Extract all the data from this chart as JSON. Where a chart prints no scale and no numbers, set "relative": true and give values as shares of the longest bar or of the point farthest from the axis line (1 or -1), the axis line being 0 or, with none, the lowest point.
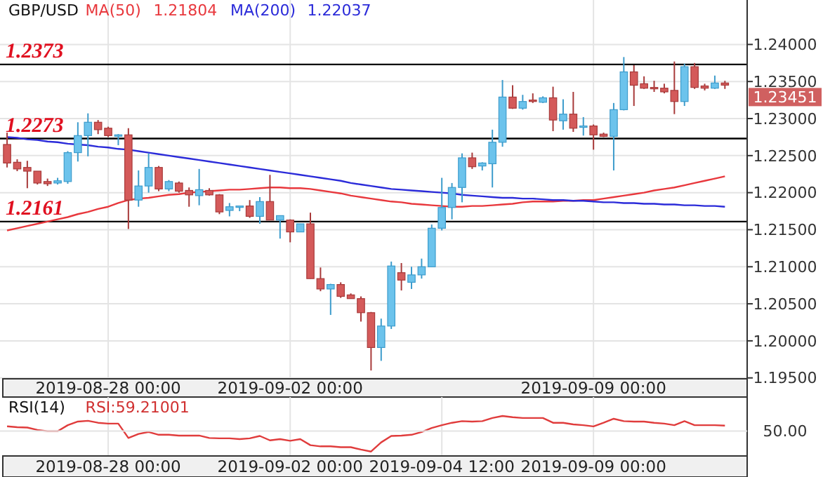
{
  "chart_data": [
    {
      "type": "candlestick",
      "title": "GBP/USD",
      "legend": "top",
      "grid": true,
      "categories": [
        null,
        null,
        null,
        null,
        null,
        null,
        null,
        null,
        null,
        null,
        "2019-08-28 00:00",
        null,
        null,
        null,
        null,
        null,
        null,
        null,
        null,
        null,
        null,
        null,
        null,
        null,
        null,
        null,
        null,
        null,
        "2019-09-02 00:00",
        null,
        null,
        null,
        null,
        null,
        null,
        null,
        null,
        null,
        null,
        null,
        null,
        null,
        null,
        null,
        null,
        null,
        null,
        null,
        null,
        null,
        null,
        null,
        null,
        null,
        null,
        null,
        null,
        null,
        "2019-09-09 00:00",
        null,
        null,
        null,
        null,
        null,
        null,
        null,
        null,
        null,
        null,
        null,
        null,
        null
      ],
      "ylim": [
        1.1945,
        1.246
      ],
      "yticks": [
        {
          "value": 1.195,
          "label": "1.19500"
        },
        {
          "value": 1.2,
          "label": "1.20000"
        },
        {
          "value": 1.205,
          "label": "1.20500"
        },
        {
          "value": 1.21,
          "label": "1.21000"
        },
        {
          "value": 1.215,
          "label": "1.21500"
        },
        {
          "value": 1.22,
          "label": "1.22000"
        },
        {
          "value": 1.225,
          "label": "1.22500"
        },
        {
          "value": 1.23,
          "label": "1.23000"
        },
        {
          "value": 1.235,
          "label": "1.23500"
        },
        {
          "value": 1.24,
          "label": "1.24000"
        }
      ],
      "ohlc": [
        [
          1.2265,
          1.2281,
          1.2234,
          1.224
        ],
        [
          1.2241,
          1.2245,
          1.2229,
          1.2232
        ],
        [
          1.2234,
          1.2243,
          1.2206,
          1.2229
        ],
        [
          1.2229,
          1.2229,
          1.2211,
          1.2213
        ],
        [
          1.2215,
          1.2219,
          1.2209,
          1.2212
        ],
        [
          1.2213,
          1.222,
          1.2211,
          1.2216
        ],
        [
          1.2215,
          1.2256,
          1.2212,
          1.2254
        ],
        [
          1.2254,
          1.2295,
          1.2242,
          1.2277
        ],
        [
          1.2277,
          1.2307,
          1.2249,
          1.2295
        ],
        [
          1.2295,
          1.2298,
          1.2279,
          1.2285
        ],
        [
          1.2287,
          1.2289,
          1.2275,
          1.2277
        ],
        [
          1.2277,
          1.2279,
          1.2264,
          1.2278
        ],
        [
          1.2278,
          1.2287,
          1.2151,
          1.219
        ],
        [
          1.219,
          1.223,
          1.2181,
          1.2209
        ],
        [
          1.2209,
          1.2253,
          1.22,
          1.2234
        ],
        [
          1.2234,
          1.2236,
          1.2202,
          1.2205
        ],
        [
          1.2205,
          1.2217,
          1.2202,
          1.2215
        ],
        [
          1.2213,
          1.2215,
          1.22,
          1.2202
        ],
        [
          1.2203,
          1.2207,
          1.2181,
          1.2197
        ],
        [
          1.2196,
          1.2232,
          1.2183,
          1.2204
        ],
        [
          1.2203,
          1.2206,
          1.2196,
          1.2197
        ],
        [
          1.2197,
          1.2198,
          1.2171,
          1.2174
        ],
        [
          1.2176,
          1.2186,
          1.2168,
          1.2181
        ],
        [
          1.2181,
          1.2182,
          1.2175,
          1.2182
        ],
        [
          1.2182,
          1.219,
          1.2166,
          1.2168
        ],
        [
          1.2168,
          1.2194,
          1.2158,
          1.2188
        ],
        [
          1.2188,
          1.2224,
          1.2163,
          1.2163
        ],
        [
          1.2163,
          1.2169,
          1.2138,
          1.2169
        ],
        [
          1.2163,
          1.2164,
          1.2133,
          1.2147
        ],
        [
          1.2147,
          1.2158,
          1.2147,
          1.2158
        ],
        [
          1.2158,
          1.2173,
          1.2084,
          1.2084
        ],
        [
          1.2084,
          1.2099,
          1.2067,
          1.207
        ],
        [
          1.207,
          1.2077,
          1.2035,
          1.2076
        ],
        [
          1.2076,
          1.2079,
          1.2058,
          1.206
        ],
        [
          1.2062,
          1.2064,
          1.2057,
          1.2057
        ],
        [
          1.2057,
          1.206,
          1.2026,
          1.2038
        ],
        [
          1.2038,
          1.2039,
          1.196,
          1.1991
        ],
        [
          1.1991,
          1.203,
          1.1973,
          1.202
        ],
        [
          1.202,
          1.2107,
          1.2016,
          1.2101
        ],
        [
          1.2092,
          1.2105,
          1.2068,
          1.2082
        ],
        [
          1.2079,
          1.21,
          1.207,
          1.2089
        ],
        [
          1.2089,
          1.2111,
          1.2084,
          1.21
        ],
        [
          1.21,
          1.2157,
          1.21,
          1.2152
        ],
        [
          1.2152,
          1.222,
          1.2149,
          1.218
        ],
        [
          1.218,
          1.2213,
          1.2164,
          1.2207
        ],
        [
          1.2207,
          1.2253,
          1.2187,
          1.2247
        ],
        [
          1.2247,
          1.2254,
          1.2232,
          1.2235
        ],
        [
          1.2236,
          1.2241,
          1.223,
          1.224
        ],
        [
          1.2239,
          1.2285,
          1.2207,
          1.2268
        ],
        [
          1.2268,
          1.2352,
          1.2262,
          1.2329
        ],
        [
          1.2329,
          1.2345,
          1.2313,
          1.2314
        ],
        [
          1.2314,
          1.2332,
          1.2312,
          1.2323
        ],
        [
          1.2325,
          1.2334,
          1.2321,
          1.2323
        ],
        [
          1.2322,
          1.233,
          1.2321,
          1.2328
        ],
        [
          1.2328,
          1.2343,
          1.2283,
          1.2298
        ],
        [
          1.2297,
          1.2326,
          1.2285,
          1.2306
        ],
        [
          1.2306,
          1.2336,
          1.2282,
          1.2287
        ],
        [
          1.2289,
          1.2302,
          1.2277,
          1.229
        ],
        [
          1.229,
          1.2292,
          1.2258,
          1.2278
        ],
        [
          1.2279,
          1.2281,
          1.2275,
          1.2276
        ],
        [
          1.2276,
          1.2321,
          1.223,
          1.2312
        ],
        [
          1.2312,
          1.2383,
          1.2311,
          1.2363
        ],
        [
          1.2363,
          1.2372,
          1.2317,
          1.2345
        ],
        [
          1.2347,
          1.2357,
          1.234,
          1.2341
        ],
        [
          1.2342,
          1.2351,
          1.2336,
          1.2341
        ],
        [
          1.2341,
          1.2347,
          1.2334,
          1.2336
        ],
        [
          1.2338,
          1.2377,
          1.2306,
          1.2323
        ],
        [
          1.2323,
          1.2374,
          1.2317,
          1.237
        ],
        [
          1.237,
          1.2375,
          1.234,
          1.2342
        ],
        [
          1.2344,
          1.2347,
          1.2338,
          1.2341
        ],
        [
          1.2341,
          1.2358,
          1.234,
          1.2348
        ],
        [
          1.2348,
          1.2351,
          1.234,
          1.23451
        ]
      ],
      "series": [
        {
          "name": "MA(50)",
          "type": "line",
          "color": "#e8383d",
          "values": [
            1.2149,
            1.2152,
            1.2155,
            1.2158,
            1.2161,
            1.2164,
            1.2167,
            1.2171,
            1.2174,
            1.2178,
            1.2181,
            1.2186,
            1.219,
            1.2192,
            1.2193,
            1.2195,
            1.2197,
            1.2198,
            1.22,
            1.2201,
            1.2202,
            1.2203,
            1.2204,
            1.2204,
            1.2205,
            1.2206,
            1.2207,
            1.2207,
            1.2206,
            1.2206,
            1.2205,
            1.2203,
            1.2201,
            1.2199,
            1.2196,
            1.2194,
            1.2192,
            1.219,
            1.2188,
            1.2187,
            1.2185,
            1.2184,
            1.2183,
            1.2182,
            1.2181,
            1.2181,
            1.2182,
            1.2182,
            1.2183,
            1.2184,
            1.2185,
            1.2187,
            1.2188,
            1.2188,
            1.2188,
            1.2189,
            1.2189,
            1.219,
            1.219,
            1.2192,
            1.2194,
            1.2196,
            1.2198,
            1.22,
            1.2203,
            1.2205,
            1.2207,
            1.221,
            1.2213,
            1.2216,
            1.2219,
            1.2222
          ]
        },
        {
          "name": "MA(200)",
          "type": "line",
          "color": "#2b2bd9",
          "values": [
            1.2275,
            1.2274,
            1.2272,
            1.2271,
            1.2269,
            1.2268,
            1.2266,
            1.2265,
            1.2264,
            1.2262,
            1.2261,
            1.2259,
            1.2258,
            1.2256,
            1.2254,
            1.2252,
            1.225,
            1.2248,
            1.2246,
            1.2244,
            1.2242,
            1.224,
            1.2238,
            1.2236,
            1.2234,
            1.2232,
            1.223,
            1.2228,
            1.2226,
            1.2224,
            1.2222,
            1.222,
            1.2218,
            1.2216,
            1.2213,
            1.2211,
            1.2209,
            1.2207,
            1.2205,
            1.2204,
            1.2203,
            1.2202,
            1.2201,
            1.22,
            1.2199,
            1.2197,
            1.2196,
            1.2195,
            1.2194,
            1.2193,
            1.2193,
            1.2192,
            1.2192,
            1.2191,
            1.219,
            1.219,
            1.2189,
            1.2189,
            1.2188,
            1.2187,
            1.2187,
            1.2186,
            1.2186,
            1.2185,
            1.2185,
            1.2184,
            1.2184,
            1.2183,
            1.2183,
            1.2182,
            1.2182,
            1.2181
          ]
        }
      ],
      "ref_lines": [
        {
          "axis": "y",
          "value": 1.2373,
          "label": "1.2373",
          "color": "#000000"
        },
        {
          "axis": "y",
          "value": 1.2273,
          "label": "1.2273",
          "color": "#000000"
        },
        {
          "axis": "y",
          "value": 1.2161,
          "label": "1.2161",
          "color": "#000000"
        }
      ],
      "annotations": [
        "1.21804",
        "1.22037",
        "1.23451"
      ]
    },
    {
      "type": "line",
      "title": "RSI(14)",
      "grid": true,
      "categories": [
        null,
        null,
        null,
        null,
        null,
        null,
        null,
        null,
        null,
        null,
        "2019-08-28 00:00",
        null,
        null,
        null,
        null,
        null,
        null,
        null,
        null,
        null,
        null,
        null,
        null,
        null,
        null,
        null,
        null,
        null,
        "2019-09-02 00:00",
        null,
        null,
        null,
        null,
        null,
        null,
        null,
        null,
        null,
        null,
        null,
        null,
        null,
        null,
        "2019-09-04 12:00",
        null,
        null,
        null,
        null,
        null,
        null,
        null,
        null,
        null,
        null,
        null,
        null,
        null,
        null,
        "2019-09-09 00:00",
        null,
        null,
        null,
        null,
        null,
        null,
        null,
        null,
        null,
        null,
        null,
        null,
        null
      ],
      "relative": true,
      "series": [
        {
          "color": "#e03c3c",
          "values": [
            0.74,
            0.72,
            0.71,
            0.65,
            0.62,
            0.62,
            0.77,
            0.86,
            0.88,
            0.83,
            0.81,
            0.81,
            0.45,
            0.55,
            0.6,
            0.53,
            0.53,
            0.51,
            0.51,
            0.51,
            0.45,
            0.44,
            0.44,
            0.42,
            0.44,
            0.5,
            0.39,
            0.42,
            0.38,
            0.42,
            0.27,
            0.24,
            0.24,
            0.22,
            0.22,
            0.16,
            0.11,
            0.34,
            0.5,
            0.51,
            0.53,
            0.6,
            0.7,
            0.77,
            0.83,
            0.87,
            0.86,
            0.87,
            0.95,
            1,
            0.97,
            0.95,
            0.95,
            0.95,
            0.83,
            0.83,
            0.79,
            0.77,
            0.74,
            0.83,
            0.93,
            0.87,
            0.86,
            0.86,
            0.83,
            0.81,
            0.77,
            0.87,
            0.77,
            0.77,
            0.77,
            0.76
          ]
        }
      ],
      "annotations": [
        "RSI:59.21001",
        "50.00"
      ]
    }
  ]
}
